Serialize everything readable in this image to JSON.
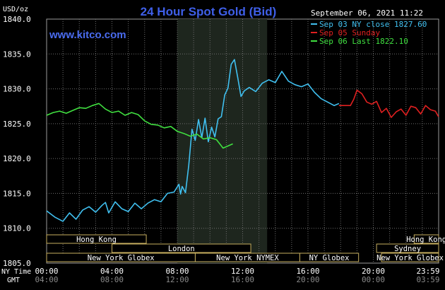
{
  "chart_data": {
    "type": "line",
    "title": "24 Hour Spot Gold (Bid)",
    "subtitle": "www.kitco.com",
    "datetime": "September 06, 2021 11:22",
    "ylabel": "USD/oz",
    "ylim": [
      1805,
      1840
    ],
    "yticks": [
      "1840.0",
      "1835.0",
      "1830.0",
      "1825.0",
      "1820.0",
      "1815.0",
      "1810.0",
      "1805.0"
    ],
    "xlim": [
      0,
      24
    ],
    "ny_time_label": "NY Time",
    "gmt_label": "GMT",
    "ny_ticks": [
      "00:00",
      "04:00",
      "08:00",
      "12:00",
      "16:00",
      "20:00",
      "23:59"
    ],
    "gmt_ticks": [
      "04:00",
      "08:00",
      "12:00",
      "16:00",
      "20:00",
      "00:00",
      "03:59"
    ],
    "grid": true,
    "legend_position": "top-right",
    "highlight_range": [
      8,
      13.5
    ],
    "sessions": [
      {
        "label": "Hong Kong",
        "start": 0,
        "end": 6.1,
        "row": 0
      },
      {
        "label": "Hong Kong",
        "start": 22.5,
        "end": 24,
        "row": 0
      },
      {
        "label": "London",
        "start": 4,
        "end": 12.5,
        "row": 1
      },
      {
        "label": "Sydney",
        "start": 20.2,
        "end": 24,
        "row": 1
      },
      {
        "label": "New York Globex",
        "start": 0,
        "end": 9.1,
        "row": 2
      },
      {
        "label": "New York NYMEX",
        "start": 9.1,
        "end": 15.5,
        "row": 2
      },
      {
        "label": "NY Globex",
        "start": 15.5,
        "end": 19.1,
        "row": 2
      },
      {
        "label": "New York Globex",
        "start": 20.5,
        "end": 24,
        "row": 2
      }
    ],
    "series": [
      {
        "name": "Sep 03 NY close 1827.60",
        "color": "#40c0f0",
        "x": [
          0,
          0.5,
          1,
          1.4,
          1.8,
          2.2,
          2.6,
          3,
          3.4,
          3.6,
          3.8,
          4.2,
          4.6,
          5,
          5.4,
          5.8,
          6.2,
          6.6,
          7,
          7.4,
          7.8,
          8.1,
          8.2,
          8.3,
          8.5,
          8.7,
          8.9,
          9.1,
          9.3,
          9.5,
          9.7,
          9.9,
          10.1,
          10.3,
          10.5,
          10.7,
          10.9,
          11.1,
          11.3,
          11.5,
          11.7,
          11.9,
          12.1,
          12.4,
          12.8,
          13.2,
          13.6,
          14,
          14.4,
          14.8,
          15.2,
          15.6,
          16,
          16.4,
          16.8,
          17.2,
          17.6,
          17.9
        ],
        "values": [
          1812.5,
          1811.6,
          1811.0,
          1812.2,
          1811.3,
          1812.6,
          1813.1,
          1812.3,
          1813.3,
          1813.7,
          1812.2,
          1813.8,
          1812.8,
          1812.4,
          1813.6,
          1812.8,
          1813.6,
          1814.1,
          1813.8,
          1815.0,
          1815.2,
          1816.3,
          1814.9,
          1816.0,
          1815.1,
          1819.0,
          1824.2,
          1822.6,
          1825.6,
          1823.0,
          1825.8,
          1822.4,
          1824.5,
          1823.1,
          1825.7,
          1826.0,
          1829.1,
          1830.1,
          1833.5,
          1834.2,
          1831.6,
          1828.9,
          1829.7,
          1830.2,
          1829.6,
          1830.8,
          1831.3,
          1830.9,
          1832.5,
          1831.1,
          1830.6,
          1830.3,
          1830.7,
          1829.5,
          1828.6,
          1828.1,
          1827.6,
          1827.9
        ]
      },
      {
        "name": "Sep 05 Sunday",
        "color": "#e02020",
        "x": [
          17.9,
          18.6,
          18.8,
          19.0,
          19.3,
          19.6,
          19.9,
          20.2,
          20.5,
          20.8,
          21.1,
          21.4,
          21.7,
          22.0,
          22.3,
          22.6,
          22.9,
          23.2,
          23.5,
          23.8,
          23.99
        ],
        "values": [
          1827.6,
          1827.6,
          1828.5,
          1829.8,
          1829.3,
          1828.1,
          1827.8,
          1828.2,
          1826.6,
          1827.2,
          1825.9,
          1826.7,
          1827.1,
          1826.2,
          1827.5,
          1827.3,
          1826.4,
          1827.6,
          1827.0,
          1826.8,
          1826.0
        ]
      },
      {
        "name": "Sep 06 Last 1822.10",
        "color": "#40e040",
        "x": [
          0,
          0.4,
          0.8,
          1.2,
          1.6,
          2.0,
          2.4,
          2.8,
          3.2,
          3.6,
          4.0,
          4.4,
          4.8,
          5.2,
          5.6,
          6.0,
          6.4,
          6.8,
          7.2,
          7.6,
          8.0,
          8.4,
          8.8,
          9.2,
          9.6,
          10.0,
          10.4,
          10.8,
          11.2,
          11.4
        ],
        "values": [
          1826.2,
          1826.6,
          1826.8,
          1826.5,
          1826.9,
          1827.3,
          1827.2,
          1827.6,
          1827.9,
          1827.1,
          1826.6,
          1826.8,
          1826.2,
          1826.6,
          1826.3,
          1825.4,
          1824.9,
          1824.8,
          1824.4,
          1824.6,
          1823.9,
          1823.6,
          1823.2,
          1823.5,
          1822.8,
          1823.0,
          1822.7,
          1821.5,
          1821.9,
          1822.1
        ]
      }
    ]
  }
}
